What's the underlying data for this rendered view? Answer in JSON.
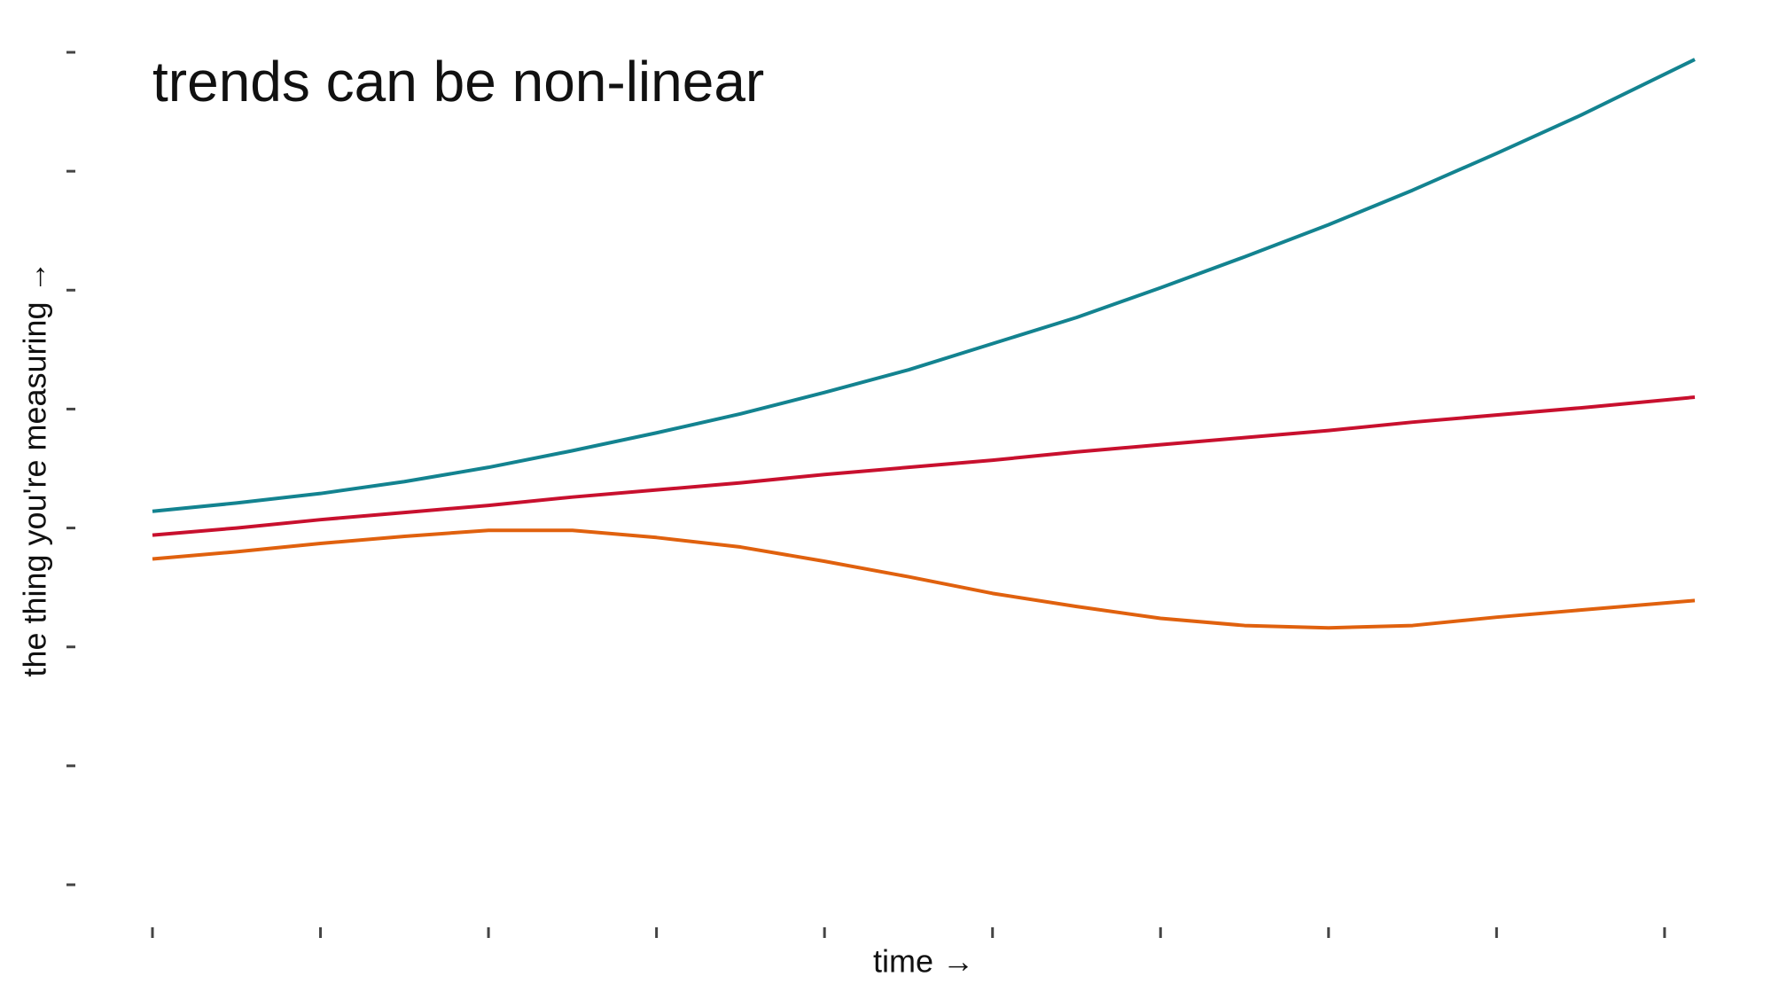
{
  "chart_data": {
    "type": "line",
    "title": "trends can be non-linear",
    "x_label": "time →",
    "y_label": "the thing you're measuring →",
    "x": [
      0,
      0.5,
      1,
      1.5,
      2,
      2.5,
      3,
      3.5,
      4,
      4.5,
      5,
      5.5,
      6,
      6.5,
      7,
      7.5,
      8,
      8.5,
      9.18
    ],
    "series": [
      {
        "color": "#138390",
        "values": [
          3.14,
          3.21,
          3.29,
          3.39,
          3.51,
          3.65,
          3.8,
          3.96,
          4.14,
          4.33,
          4.55,
          4.77,
          5.02,
          5.28,
          5.55,
          5.84,
          6.15,
          6.47,
          6.94
        ]
      },
      {
        "color": "#c8102e",
        "values": [
          2.94,
          3.0,
          3.07,
          3.13,
          3.19,
          3.26,
          3.32,
          3.38,
          3.45,
          3.51,
          3.57,
          3.64,
          3.7,
          3.76,
          3.82,
          3.89,
          3.95,
          4.01,
          4.1
        ]
      },
      {
        "color": "#e0610e",
        "values": [
          2.74,
          2.8,
          2.87,
          2.93,
          2.98,
          2.98,
          2.92,
          2.84,
          2.72,
          2.59,
          2.45,
          2.34,
          2.24,
          2.18,
          2.16,
          2.18,
          2.25,
          2.31,
          2.39
        ]
      }
    ],
    "xlim": [
      0,
      9.18
    ],
    "ylim": [
      0,
      7
    ],
    "xticks": [
      0,
      1,
      2,
      3,
      4,
      5,
      6,
      7,
      8,
      9
    ],
    "yticks": [
      0,
      1,
      2,
      3,
      4,
      5,
      6,
      7
    ]
  }
}
